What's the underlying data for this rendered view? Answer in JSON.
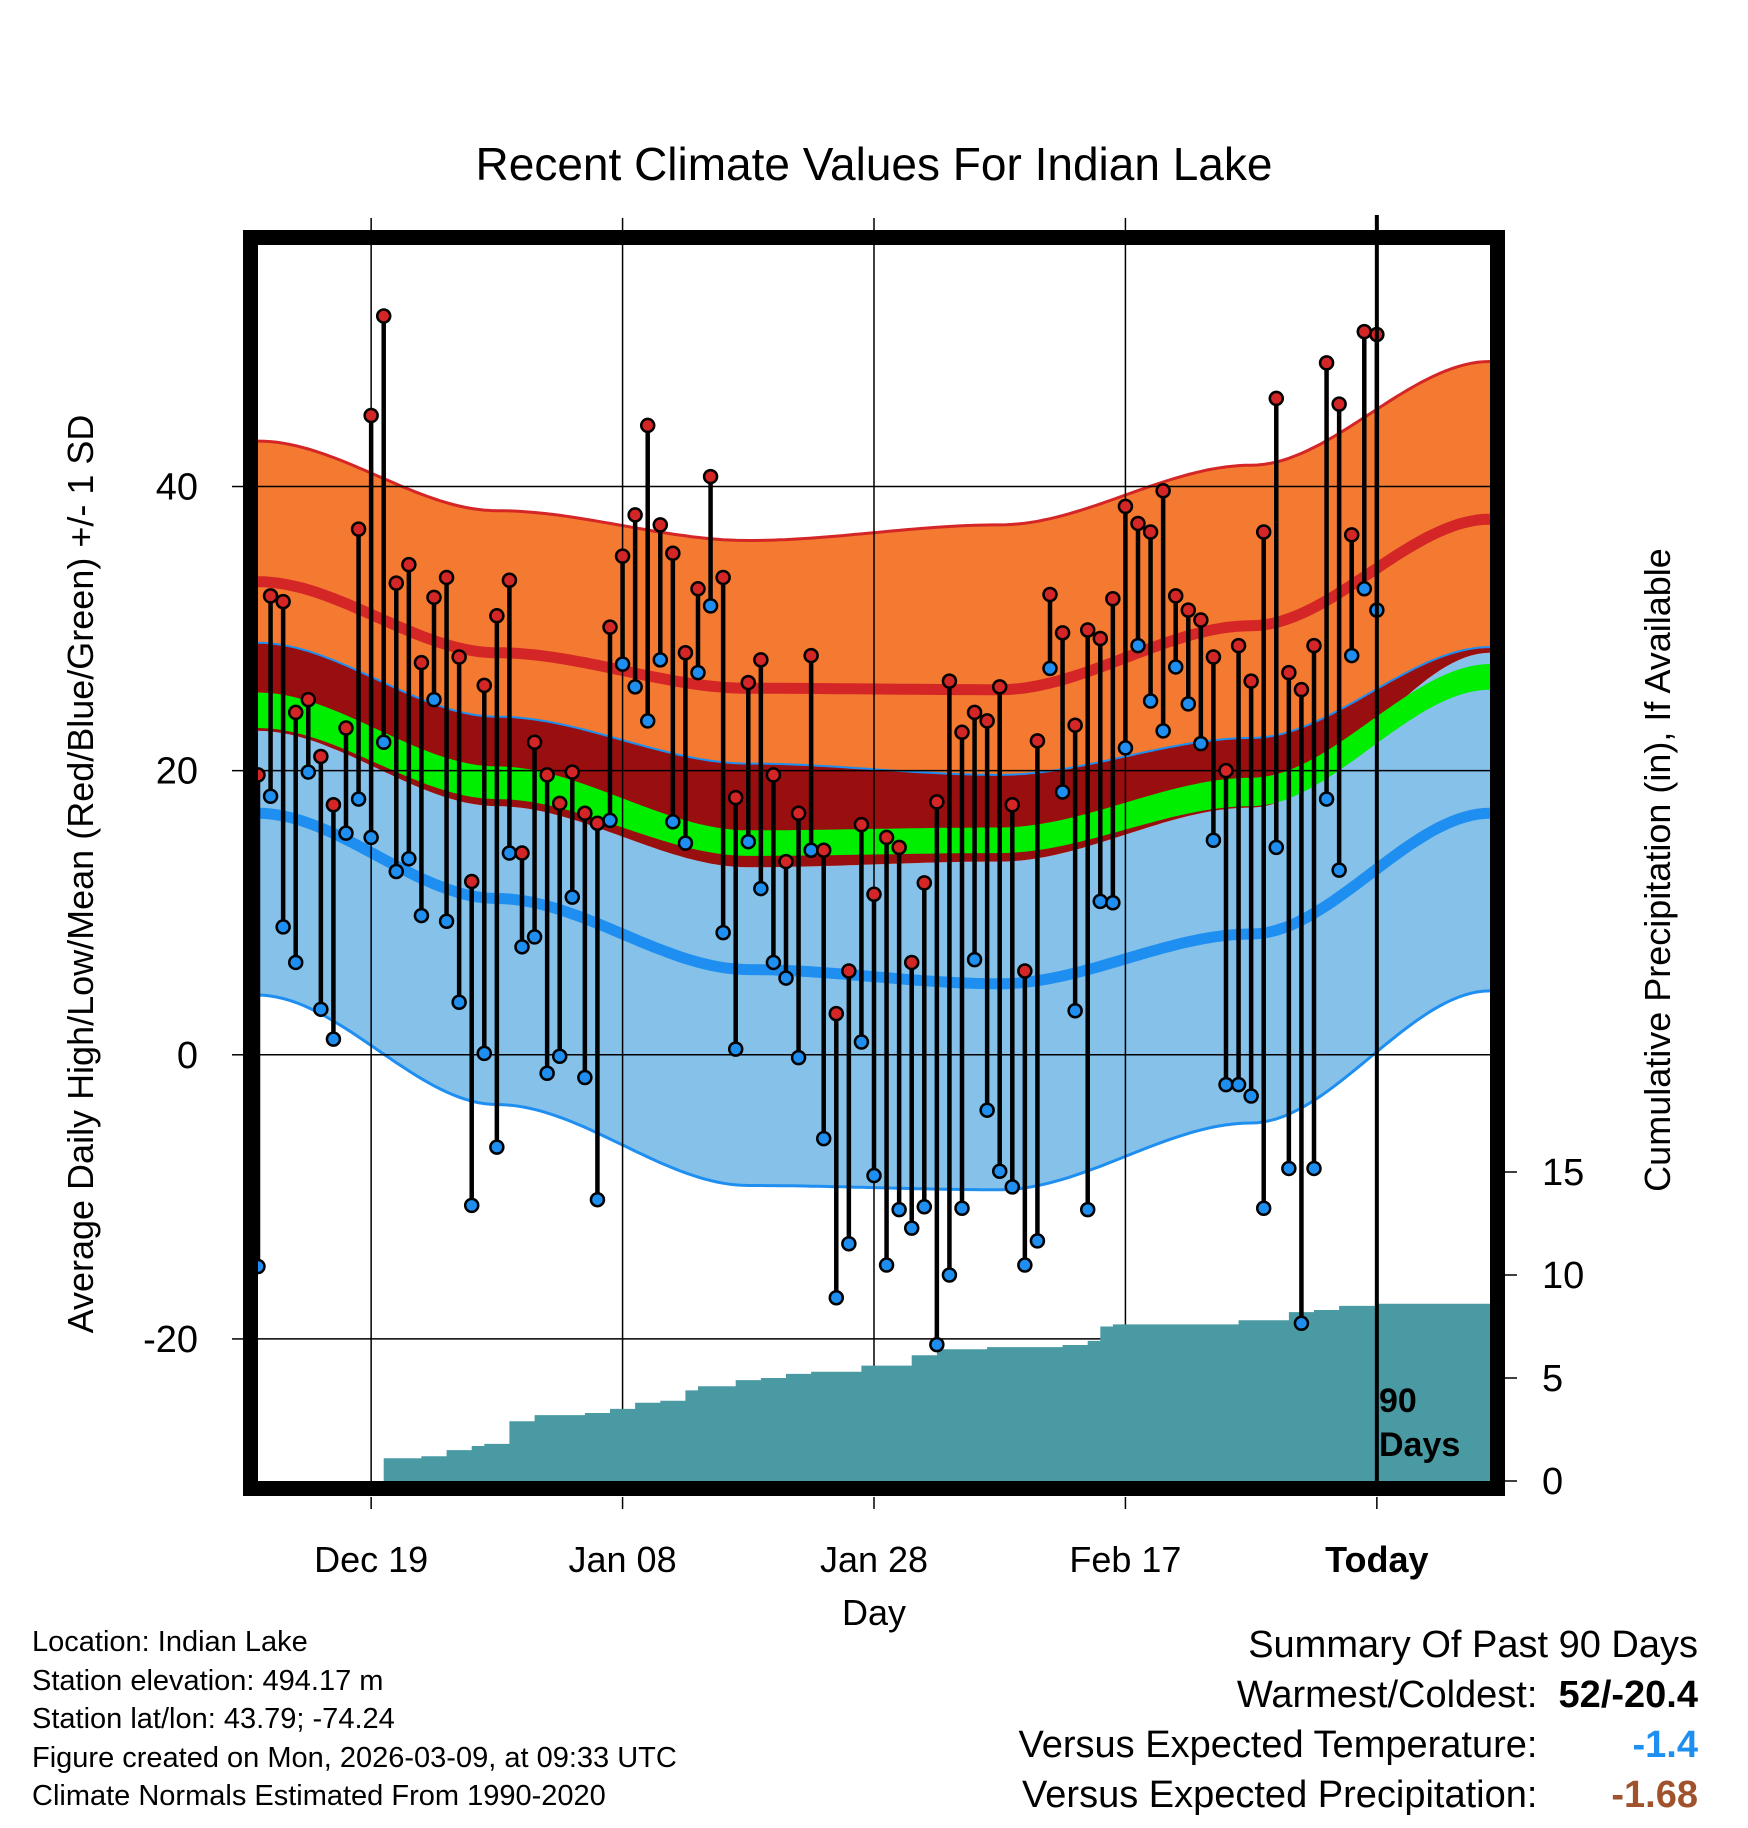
{
  "chart_data": {
    "type": "line",
    "title": "Recent Climate Values For Indian Lake",
    "xlabel": "Day",
    "ylabel": "Average Daily High/Low/Mean (Red/Blue/Green) +/- 1 SD",
    "y2label": "Cumulative Precipitation (in), If Available",
    "ylim": [
      -30,
      57
    ],
    "y2lim": [
      0,
      60
    ],
    "y_ticks": [
      -20,
      0,
      20,
      40
    ],
    "y_tick_labels": [
      "-20",
      "0",
      "20",
      "40"
    ],
    "y2_ticks": [
      0,
      5,
      10,
      15
    ],
    "y2_tick_labels": [
      "0",
      "5",
      "10",
      "15"
    ],
    "x_range": [
      -89,
      9
    ],
    "x_ticks": [
      -80,
      -60,
      -40,
      -20,
      0
    ],
    "x_tick_labels": [
      "Dec 19",
      "Jan 08",
      "Jan 28",
      "Feb 17",
      "Today"
    ],
    "today_marker_label": [
      "90",
      "Days"
    ],
    "colors": {
      "high_band": "#f37a30",
      "high_mean": "#d42626",
      "mid_band": "#990f0f",
      "mean_band": "#00ee00",
      "low_band": "#85c1e9",
      "low_mean": "#1e8ff0",
      "low_edge": "#1e8ff0",
      "precip": "#4a9aa3",
      "high_dot": "#d42626",
      "low_dot": "#1e8ff0"
    },
    "normals": {
      "x": [
        -89,
        -70,
        -50,
        -30,
        -10,
        9
      ],
      "high_plus_sd": [
        43.2,
        38.3,
        36.2,
        37.3,
        41.5,
        48.8
      ],
      "high_mean": [
        33.3,
        28.3,
        25.8,
        25.7,
        30.2,
        37.7
      ],
      "high_minus_sd": [
        29.0,
        23.8,
        20.5,
        19.7,
        22.3,
        28.7
      ],
      "mean_upper": [
        25.5,
        20.3,
        15.8,
        16.0,
        19.5,
        27.5
      ],
      "mean_lower": [
        23.0,
        18.0,
        14.0,
        14.2,
        17.5,
        25.7
      ],
      "low_plus_sd": [
        22.8,
        17.5,
        13.2,
        13.6,
        17.4,
        28.3
      ],
      "low_mean": [
        17.0,
        11.0,
        6.0,
        5.0,
        8.5,
        17.0
      ],
      "low_minus_sd": [
        4.2,
        -3.5,
        -9.2,
        -9.5,
        -4.8,
        4.5
      ]
    },
    "series": [
      {
        "name": "Daily High",
        "values": [
          19.7,
          32.3,
          31.9,
          24.1,
          25.0,
          21.0,
          17.6,
          23.0,
          37.0,
          45.0,
          52.0,
          33.2,
          34.5,
          27.6,
          32.2,
          33.6,
          28.0,
          12.2,
          26.0,
          30.9,
          33.4,
          14.2,
          22.0,
          19.7,
          17.7,
          19.9,
          17.0,
          16.3,
          30.1,
          35.1,
          38.0,
          44.3,
          37.3,
          35.3,
          28.3,
          32.8,
          40.7,
          33.6,
          18.1,
          26.2,
          27.8,
          19.7,
          13.6,
          17.0,
          28.1,
          14.4,
          2.9,
          5.9,
          16.2,
          11.3,
          15.3,
          14.6,
          6.5,
          12.1,
          17.8,
          26.3,
          22.7,
          24.1,
          23.5,
          25.9,
          17.6,
          5.9,
          22.1,
          32.4,
          29.7,
          23.2,
          29.9,
          29.3,
          32.1,
          38.6,
          37.4,
          36.8,
          39.7,
          32.3,
          31.3,
          30.6,
          28.0,
          20.0,
          28.8,
          26.3,
          36.8,
          46.2,
          26.9,
          25.7,
          28.8,
          48.7,
          45.8,
          36.6,
          50.9,
          50.7
        ]
      },
      {
        "name": "Daily Low",
        "values": [
          -14.9,
          18.2,
          9.0,
          6.5,
          19.9,
          3.2,
          1.1,
          15.6,
          18.0,
          15.3,
          22.0,
          12.9,
          13.8,
          9.8,
          25.0,
          9.4,
          3.7,
          -10.6,
          0.1,
          -6.5,
          14.2,
          7.6,
          8.3,
          -1.3,
          -0.1,
          11.1,
          -1.6,
          -10.2,
          16.5,
          27.5,
          25.9,
          23.5,
          27.8,
          16.4,
          14.9,
          26.9,
          31.6,
          8.6,
          0.4,
          15.0,
          11.7,
          6.5,
          5.4,
          -0.2,
          14.4,
          -5.9,
          -17.1,
          -13.3,
          0.9,
          -8.5,
          -14.8,
          -10.9,
          -12.2,
          -10.7,
          -20.4,
          -15.5,
          -10.8,
          6.7,
          -3.9,
          -8.2,
          -9.3,
          -14.8,
          -13.1,
          27.2,
          18.5,
          3.1,
          -10.9,
          10.8,
          10.7,
          21.6,
          28.8,
          24.9,
          22.8,
          27.3,
          24.7,
          21.9,
          15.1,
          -2.1,
          -2.1,
          -2.9,
          -10.8,
          14.6,
          -8.0,
          -18.9,
          -8.0,
          18.0,
          13.0,
          28.1,
          32.8,
          31.3
        ]
      },
      {
        "name": "Cumulative Precipitation",
        "x": [
          -89,
          -80,
          -79,
          -76,
          -74,
          -72,
          -71,
          -69,
          -67,
          -63,
          -61,
          -59,
          -57,
          -55,
          -54,
          -51,
          -49,
          -47,
          -45,
          -41,
          -37,
          -35,
          -31,
          -25,
          -23,
          -22,
          -21,
          -16,
          -11,
          -7,
          -5,
          -3,
          0,
          9
        ],
        "values": [
          0,
          0,
          1.1,
          1.2,
          1.5,
          1.7,
          1.8,
          2.9,
          3.2,
          3.3,
          3.5,
          3.8,
          3.9,
          4.4,
          4.6,
          4.9,
          5.0,
          5.2,
          5.3,
          5.6,
          6.1,
          6.4,
          6.5,
          6.6,
          6.8,
          7.5,
          7.6,
          7.6,
          7.8,
          8.2,
          8.3,
          8.5,
          8.6,
          8.6
        ]
      }
    ]
  },
  "footer": {
    "location": "Location: Indian Lake",
    "elevation": "Station elevation: 494.17 m",
    "latlon": "Station lat/lon: 43.79; -74.24",
    "created": "Figure created on Mon, 2026-03-09, at 09:33 UTC",
    "normals": "Climate Normals Estimated From 1990-2020"
  },
  "summary": {
    "title": "Summary Of Past 90 Days",
    "warmest_label": "Warmest/Coldest:",
    "warmest_value": "52/-20.4",
    "temp_label": "Versus Expected Temperature:",
    "temp_value": "-1.4",
    "temp_color": "#1e8ff0",
    "precip_label": "Versus Expected Precipitation:",
    "precip_value": "-1.68",
    "precip_color": "#a0522d"
  }
}
